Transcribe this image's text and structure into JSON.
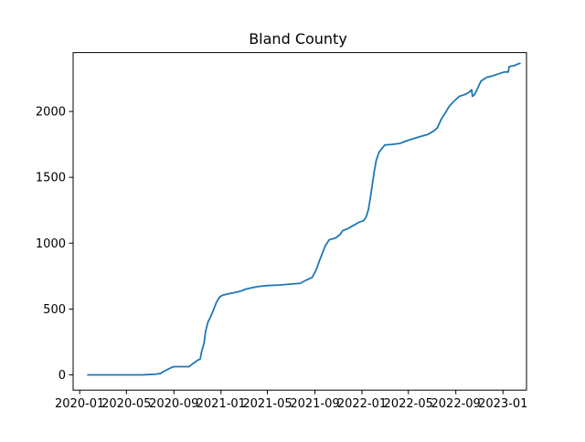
{
  "chart_data": {
    "type": "line",
    "title": "Bland County",
    "xlabel": "",
    "ylabel": "",
    "x_tick_labels": [
      "2020-01",
      "2020-05",
      "2020-09",
      "2021-01",
      "2021-05",
      "2021-09",
      "2022-01",
      "2022-05",
      "2022-09",
      "2023-01"
    ],
    "x_ticks": [
      "2020-01-01",
      "2020-05-01",
      "2020-09-01",
      "2021-01-01",
      "2021-05-01",
      "2021-09-01",
      "2022-01-01",
      "2022-05-01",
      "2022-09-01",
      "2023-01-01"
    ],
    "y_ticks": [
      0,
      500,
      1000,
      1500,
      2000
    ],
    "xlim": [
      "2019-12-15",
      "2023-03-03"
    ],
    "ylim": [
      -116,
      2447
    ],
    "grid": false,
    "color": "#1f77b4",
    "series": [
      {
        "points": [
          [
            "2020-01-22",
            0
          ],
          [
            "2020-02-15",
            0
          ],
          [
            "2020-03-15",
            0
          ],
          [
            "2020-04-15",
            0
          ],
          [
            "2020-05-15",
            0
          ],
          [
            "2020-06-10",
            0
          ],
          [
            "2020-06-25",
            2
          ],
          [
            "2020-07-15",
            5
          ],
          [
            "2020-07-28",
            10
          ],
          [
            "2020-08-05",
            25
          ],
          [
            "2020-08-15",
            40
          ],
          [
            "2020-08-25",
            55
          ],
          [
            "2020-09-01",
            62
          ],
          [
            "2020-09-15",
            62
          ],
          [
            "2020-10-01",
            62
          ],
          [
            "2020-10-10",
            62
          ],
          [
            "2020-10-20",
            85
          ],
          [
            "2020-11-01",
            110
          ],
          [
            "2020-11-08",
            120
          ],
          [
            "2020-11-12",
            180
          ],
          [
            "2020-11-18",
            240
          ],
          [
            "2020-11-22",
            330
          ],
          [
            "2020-11-28",
            400
          ],
          [
            "2020-12-05",
            440
          ],
          [
            "2020-12-12",
            490
          ],
          [
            "2020-12-20",
            550
          ],
          [
            "2020-12-28",
            590
          ],
          [
            "2021-01-05",
            605
          ],
          [
            "2021-01-20",
            615
          ],
          [
            "2021-02-05",
            625
          ],
          [
            "2021-02-20",
            635
          ],
          [
            "2021-03-05",
            650
          ],
          [
            "2021-03-20",
            660
          ],
          [
            "2021-04-05",
            670
          ],
          [
            "2021-05-01",
            678
          ],
          [
            "2021-06-01",
            682
          ],
          [
            "2021-07-01",
            690
          ],
          [
            "2021-07-25",
            695
          ],
          [
            "2021-08-10",
            720
          ],
          [
            "2021-08-25",
            740
          ],
          [
            "2021-09-05",
            800
          ],
          [
            "2021-09-12",
            860
          ],
          [
            "2021-09-20",
            920
          ],
          [
            "2021-09-28",
            980
          ],
          [
            "2021-10-08",
            1025
          ],
          [
            "2021-10-25",
            1040
          ],
          [
            "2021-11-05",
            1065
          ],
          [
            "2021-11-12",
            1095
          ],
          [
            "2021-11-25",
            1110
          ],
          [
            "2021-12-10",
            1135
          ],
          [
            "2021-12-25",
            1160
          ],
          [
            "2022-01-05",
            1170
          ],
          [
            "2022-01-12",
            1200
          ],
          [
            "2022-01-18",
            1260
          ],
          [
            "2022-01-23",
            1350
          ],
          [
            "2022-01-28",
            1450
          ],
          [
            "2022-02-02",
            1550
          ],
          [
            "2022-02-07",
            1630
          ],
          [
            "2022-02-14",
            1690
          ],
          [
            "2022-02-22",
            1720
          ],
          [
            "2022-03-01",
            1745
          ],
          [
            "2022-03-20",
            1750
          ],
          [
            "2022-04-10",
            1758
          ],
          [
            "2022-04-25",
            1775
          ],
          [
            "2022-05-10",
            1790
          ],
          [
            "2022-06-01",
            1810
          ],
          [
            "2022-06-20",
            1825
          ],
          [
            "2022-07-05",
            1850
          ],
          [
            "2022-07-15",
            1875
          ],
          [
            "2022-07-25",
            1940
          ],
          [
            "2022-08-05",
            1990
          ],
          [
            "2022-08-15",
            2040
          ],
          [
            "2022-08-28",
            2080
          ],
          [
            "2022-09-10",
            2115
          ],
          [
            "2022-09-25",
            2130
          ],
          [
            "2022-10-05",
            2145
          ],
          [
            "2022-10-12",
            2165
          ],
          [
            "2022-10-14",
            2115
          ],
          [
            "2022-10-20",
            2130
          ],
          [
            "2022-10-28",
            2180
          ],
          [
            "2022-11-05",
            2230
          ],
          [
            "2022-11-20",
            2260
          ],
          [
            "2022-12-05",
            2270
          ],
          [
            "2022-12-20",
            2285
          ],
          [
            "2023-01-05",
            2300
          ],
          [
            "2023-01-15",
            2300
          ],
          [
            "2023-01-17",
            2340
          ],
          [
            "2023-02-01",
            2350
          ],
          [
            "2023-02-08",
            2360
          ],
          [
            "2023-02-14",
            2365
          ]
        ]
      }
    ]
  }
}
